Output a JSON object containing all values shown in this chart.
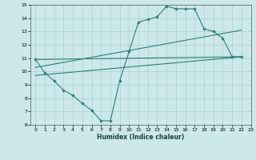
{
  "xlabel": "Humidex (Indice chaleur)",
  "bg_color": "#cce8ea",
  "grid_color": "#aacfd2",
  "line_color": "#2d7d76",
  "xlim": [
    -0.5,
    23
  ],
  "ylim": [
    6,
    15
  ],
  "xticks": [
    0,
    1,
    2,
    3,
    4,
    5,
    6,
    7,
    8,
    9,
    10,
    11,
    12,
    13,
    14,
    15,
    16,
    17,
    18,
    19,
    20,
    21,
    22,
    23
  ],
  "yticks": [
    6,
    7,
    8,
    9,
    10,
    11,
    12,
    13,
    14,
    15
  ],
  "line1_x": [
    0,
    1,
    2,
    3,
    4,
    5,
    6,
    7,
    8,
    9,
    10,
    11,
    12,
    13,
    14,
    15,
    16,
    17,
    18,
    19,
    20,
    21,
    22
  ],
  "line1_y": [
    10.9,
    9.9,
    9.3,
    8.6,
    8.2,
    7.6,
    7.1,
    6.3,
    6.3,
    9.3,
    11.5,
    13.7,
    13.9,
    14.1,
    14.9,
    14.7,
    14.7,
    14.7,
    13.2,
    13.0,
    12.5,
    11.1,
    11.1
  ],
  "line2_x": [
    0,
    22
  ],
  "line2_y": [
    10.9,
    11.1
  ],
  "line3_x": [
    0,
    22
  ],
  "line3_y": [
    10.3,
    13.1
  ],
  "line4_x": [
    0,
    22
  ],
  "line4_y": [
    9.7,
    11.1
  ]
}
